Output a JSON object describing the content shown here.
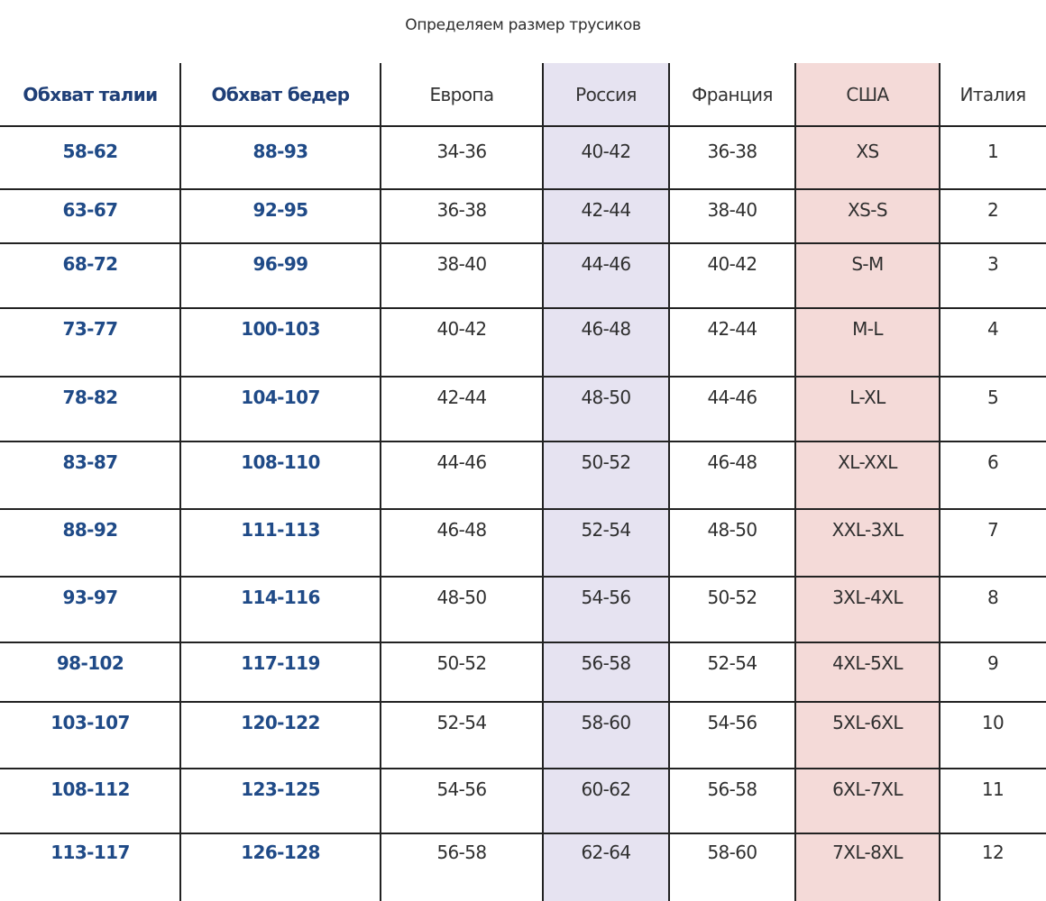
{
  "title": "Определяем размер трусиков",
  "colors": {
    "russia_column": "#e6e3f1",
    "usa_column": "#f4dad8",
    "measure_text": "#1f4a87",
    "size_text": "#2f2f2f",
    "grid_lines": "#222222"
  },
  "columns": [
    "Обхват талии",
    "Обхват бедер",
    "Европа",
    "Россия",
    "Франция",
    "США",
    "Италия"
  ],
  "rows": [
    [
      "58-62",
      "88-93",
      "34-36",
      "40-42",
      "36-38",
      "XS",
      "1"
    ],
    [
      "63-67",
      "92-95",
      "36-38",
      "42-44",
      "38-40",
      "XS-S",
      "2"
    ],
    [
      "68-72",
      "96-99",
      "38-40",
      "44-46",
      "40-42",
      "S-M",
      "3"
    ],
    [
      "73-77",
      "100-103",
      "40-42",
      "46-48",
      "42-44",
      "M-L",
      "4"
    ],
    [
      "78-82",
      "104-107",
      "42-44",
      "48-50",
      "44-46",
      "L-XL",
      "5"
    ],
    [
      "83-87",
      "108-110",
      "44-46",
      "50-52",
      "46-48",
      "XL-XXL",
      "6"
    ],
    [
      "88-92",
      "111-113",
      "46-48",
      "52-54",
      "48-50",
      "XXL-3XL",
      "7"
    ],
    [
      "93-97",
      "114-116",
      "48-50",
      "54-56",
      "50-52",
      "3XL-4XL",
      "8"
    ],
    [
      "98-102",
      "117-119",
      "50-52",
      "56-58",
      "52-54",
      "4XL-5XL",
      "9"
    ],
    [
      "103-107",
      "120-122",
      "52-54",
      "58-60",
      "54-56",
      "5XL-6XL",
      "10"
    ],
    [
      "108-112",
      "123-125",
      "54-56",
      "60-62",
      "56-58",
      "6XL-7XL",
      "11"
    ],
    [
      "113-117",
      "126-128",
      "56-58",
      "62-64",
      "58-60",
      "7XL-8XL",
      "12"
    ]
  ]
}
